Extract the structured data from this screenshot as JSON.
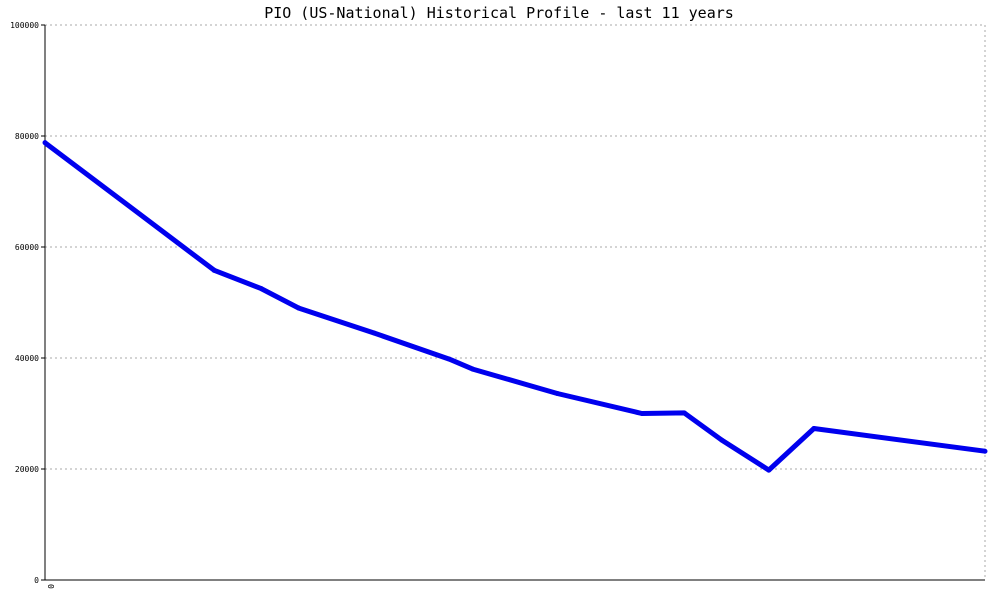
{
  "chart_data": {
    "type": "line",
    "title": "PIO (US-National) Historical Profile - last 11 years",
    "xlabel": "",
    "ylabel": "",
    "x_tick_labels": [
      "0"
    ],
    "ylim": [
      0,
      100000
    ],
    "y_ticks": [
      0,
      20000,
      40000,
      60000,
      80000,
      100000
    ],
    "y_tick_labels": [
      "0",
      "20000",
      "40000",
      "60000",
      "80000",
      "100000"
    ],
    "grid": true,
    "legend": "none",
    "colors": {
      "series": "#0000ee",
      "grid": "#aaaaaa",
      "axis": "#000000"
    },
    "series": [
      {
        "x": [
          0,
          0.18,
          0.23,
          0.27,
          0.35,
          0.43,
          0.455,
          0.545,
          0.635,
          0.68,
          0.72,
          0.77,
          0.818,
          1.0
        ],
        "values": [
          78800,
          55800,
          52500,
          49000,
          44500,
          39800,
          38000,
          33600,
          30000,
          30100,
          25200,
          19800,
          27300,
          23200
        ]
      }
    ]
  }
}
